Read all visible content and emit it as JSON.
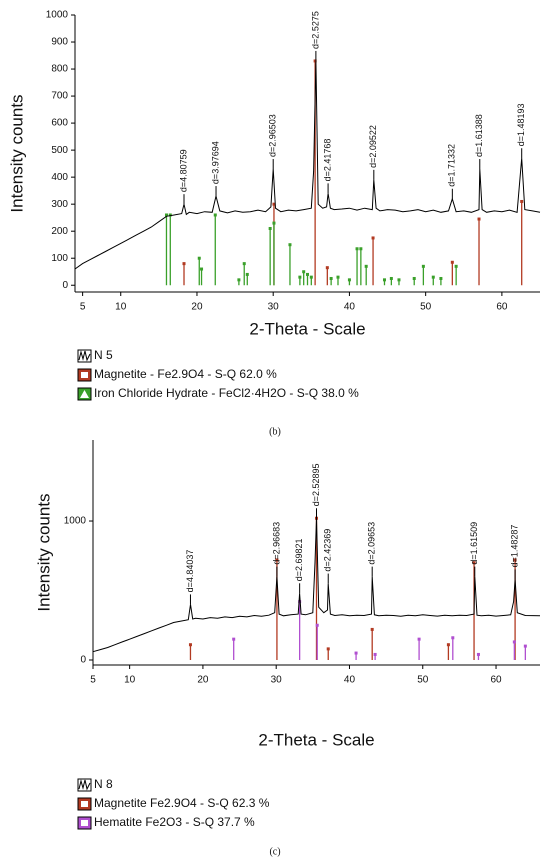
{
  "chart_data": [
    {
      "type": "line",
      "caption": "(b)",
      "xlabel": "2-Theta - Scale",
      "ylabel": "Intensity counts",
      "xlim": [
        4,
        65
      ],
      "ylim": [
        -25,
        1000
      ],
      "xticks": [
        5,
        10,
        20,
        30,
        40,
        50,
        60
      ],
      "yticks": [
        0,
        100,
        200,
        300,
        400,
        500,
        600,
        700,
        800,
        900,
        1000
      ],
      "grid": false,
      "series": [
        {
          "name": "N 5",
          "color": "#000000",
          "type": "line",
          "legend_marker": "wave",
          "x": [
            4,
            5,
            6,
            7,
            8,
            9,
            10,
            11,
            12,
            13,
            14,
            15,
            16,
            17,
            18,
            18.3,
            18.6,
            19,
            20,
            21,
            22,
            22.5,
            23,
            24,
            25,
            26,
            27,
            28,
            29,
            29.7,
            30,
            30.3,
            31,
            32,
            33,
            34,
            35,
            35.3,
            35.6,
            35.9,
            36.5,
            37,
            37.2,
            37.5,
            38,
            39,
            40,
            41,
            42,
            43,
            43.2,
            43.5,
            44,
            45,
            46,
            47,
            48,
            49,
            50,
            51,
            52,
            53,
            53.5,
            54,
            55,
            56,
            57,
            57.1,
            57.4,
            58,
            59,
            60,
            61,
            62,
            62.6,
            63,
            64,
            65
          ],
          "values": [
            60,
            80,
            95,
            110,
            125,
            140,
            155,
            170,
            185,
            200,
            215,
            235,
            255,
            260,
            265,
            300,
            262,
            270,
            265,
            272,
            270,
            330,
            275,
            268,
            275,
            270,
            272,
            278,
            272,
            290,
            430,
            285,
            272,
            278,
            275,
            280,
            285,
            420,
            830,
            300,
            285,
            290,
            340,
            285,
            280,
            282,
            285,
            278,
            285,
            280,
            390,
            285,
            275,
            280,
            278,
            272,
            275,
            280,
            272,
            278,
            270,
            275,
            320,
            272,
            275,
            270,
            280,
            430,
            280,
            270,
            275,
            272,
            278,
            270,
            470,
            280,
            275,
            270
          ]
        },
        {
          "name": "Magnetite - Fe2.9O4 - S-Q 62.0 %",
          "color": "#b23a22",
          "type": "stem",
          "legend_marker": "square",
          "x": [
            18.3,
            30.1,
            35.5,
            37.1,
            43.1,
            53.5,
            57.0,
            62.6
          ],
          "values": [
            80,
            300,
            830,
            65,
            175,
            85,
            245,
            310
          ]
        },
        {
          "name": "Iron Chloride Hydrate - FeCl2·4H2O - S-Q 38.0 %",
          "color": "#3aa02a",
          "type": "stem",
          "legend_marker": "triangle",
          "x": [
            16.0,
            16.5,
            20.3,
            20.6,
            22.4,
            25.5,
            26.2,
            26.6,
            29.6,
            30.1,
            32.2,
            33.5,
            34.0,
            34.5,
            35.0,
            37.6,
            38.5,
            40.0,
            41.0,
            41.5,
            42.2,
            44.6,
            45.5,
            46.5,
            48.5,
            49.7,
            51.0,
            52.0,
            54.0
          ],
          "values": [
            260,
            260,
            100,
            60,
            260,
            20,
            80,
            40,
            210,
            230,
            150,
            30,
            50,
            40,
            30,
            25,
            30,
            20,
            135,
            135,
            70,
            20,
            25,
            20,
            25,
            70,
            30,
            25,
            70
          ]
        }
      ],
      "annotations": [
        {
          "text": "d=4.80759",
          "x": 18.3,
          "y": 300
        },
        {
          "text": "d=3.97694",
          "x": 22.5,
          "y": 330
        },
        {
          "text": "d=2.96503",
          "x": 30,
          "y": 430
        },
        {
          "text": "d=2.5275",
          "x": 35.6,
          "y": 830
        },
        {
          "text": "d=2.41768",
          "x": 37.2,
          "y": 340
        },
        {
          "text": "d=2.09522",
          "x": 43.2,
          "y": 390
        },
        {
          "text": "d=1.71332",
          "x": 53.5,
          "y": 320
        },
        {
          "text": "d=1.61388",
          "x": 57.1,
          "y": 430
        },
        {
          "text": "d=1.48193",
          "x": 62.6,
          "y": 470
        }
      ]
    },
    {
      "type": "line",
      "caption": "(c)",
      "xlabel": "2-Theta - Scale",
      "ylabel": "Intensity counts",
      "xlim": [
        5,
        66
      ],
      "ylim": [
        -36,
        1583
      ],
      "xticks": [
        5,
        10,
        20,
        30,
        40,
        50,
        60
      ],
      "yticks": [
        0,
        1000
      ],
      "grid": false,
      "series": [
        {
          "name": "N 8",
          "color": "#000000",
          "type": "line",
          "legend_marker": "wave",
          "x": [
            5,
            6,
            7,
            8,
            9,
            10,
            11,
            12,
            13,
            14,
            15,
            16,
            17,
            18,
            18.3,
            18.6,
            19,
            20,
            21,
            22,
            23,
            24,
            25,
            26,
            27,
            28,
            29,
            29.8,
            30.1,
            30.4,
            31,
            32,
            33,
            33.2,
            33.4,
            34,
            35,
            35.3,
            35.5,
            35.8,
            36.5,
            37,
            37.1,
            37.4,
            38,
            39,
            40,
            41,
            42,
            43,
            43.1,
            43.4,
            44,
            45,
            46,
            47,
            48,
            49,
            50,
            51,
            52,
            53,
            54,
            55,
            56,
            57,
            57.1,
            57.4,
            58,
            59,
            60,
            61,
            62,
            62.4,
            62.6,
            62.9,
            64,
            66
          ],
          "values": [
            60,
            75,
            90,
            110,
            130,
            150,
            170,
            190,
            210,
            230,
            250,
            270,
            280,
            290,
            400,
            295,
            300,
            295,
            305,
            300,
            310,
            305,
            315,
            310,
            320,
            315,
            322,
            340,
            600,
            330,
            318,
            325,
            330,
            480,
            330,
            325,
            340,
            700,
            1020,
            380,
            340,
            360,
            550,
            330,
            320,
            325,
            318,
            322,
            320,
            330,
            600,
            325,
            318,
            322,
            320,
            315,
            322,
            318,
            325,
            320,
            316,
            322,
            318,
            322,
            320,
            330,
            600,
            322,
            318,
            322,
            316,
            320,
            325,
            420,
            580,
            340,
            320,
            318
          ]
        },
        {
          "name": "Magnetite Fe2.9O4 - S-Q 62.3 %",
          "color": "#b23a22",
          "type": "stem",
          "legend_marker": "square",
          "x": [
            18.3,
            30.1,
            35.5,
            37.1,
            43.1,
            53.5,
            57.0,
            62.6
          ],
          "values": [
            110,
            720,
            1020,
            80,
            220,
            110,
            700,
            720
          ]
        },
        {
          "name": "Hematite Fe2O3 - S-Q 37.7 %",
          "color": "#b04fd0",
          "type": "stem",
          "legend_marker": "square",
          "x": [
            24.2,
            33.2,
            35.6,
            40.9,
            43.5,
            49.5,
            54.1,
            57.6,
            62.5,
            64.0
          ],
          "values": [
            150,
            420,
            250,
            50,
            40,
            150,
            160,
            40,
            130,
            100
          ]
        }
      ],
      "annotations": [
        {
          "text": "d=4.84037",
          "x": 18.3,
          "y": 400
        },
        {
          "text": "d=2.96683",
          "x": 30.1,
          "y": 600
        },
        {
          "text": "d=2.69821",
          "x": 33.2,
          "y": 480
        },
        {
          "text": "d=2.52895",
          "x": 35.5,
          "y": 1020
        },
        {
          "text": "d=2.42369",
          "x": 37.1,
          "y": 550
        },
        {
          "text": "d=2.09653",
          "x": 43.1,
          "y": 600
        },
        {
          "text": "d=1.61509",
          "x": 57.1,
          "y": 600
        },
        {
          "text": "d=1.48287",
          "x": 62.6,
          "y": 580
        }
      ]
    }
  ]
}
